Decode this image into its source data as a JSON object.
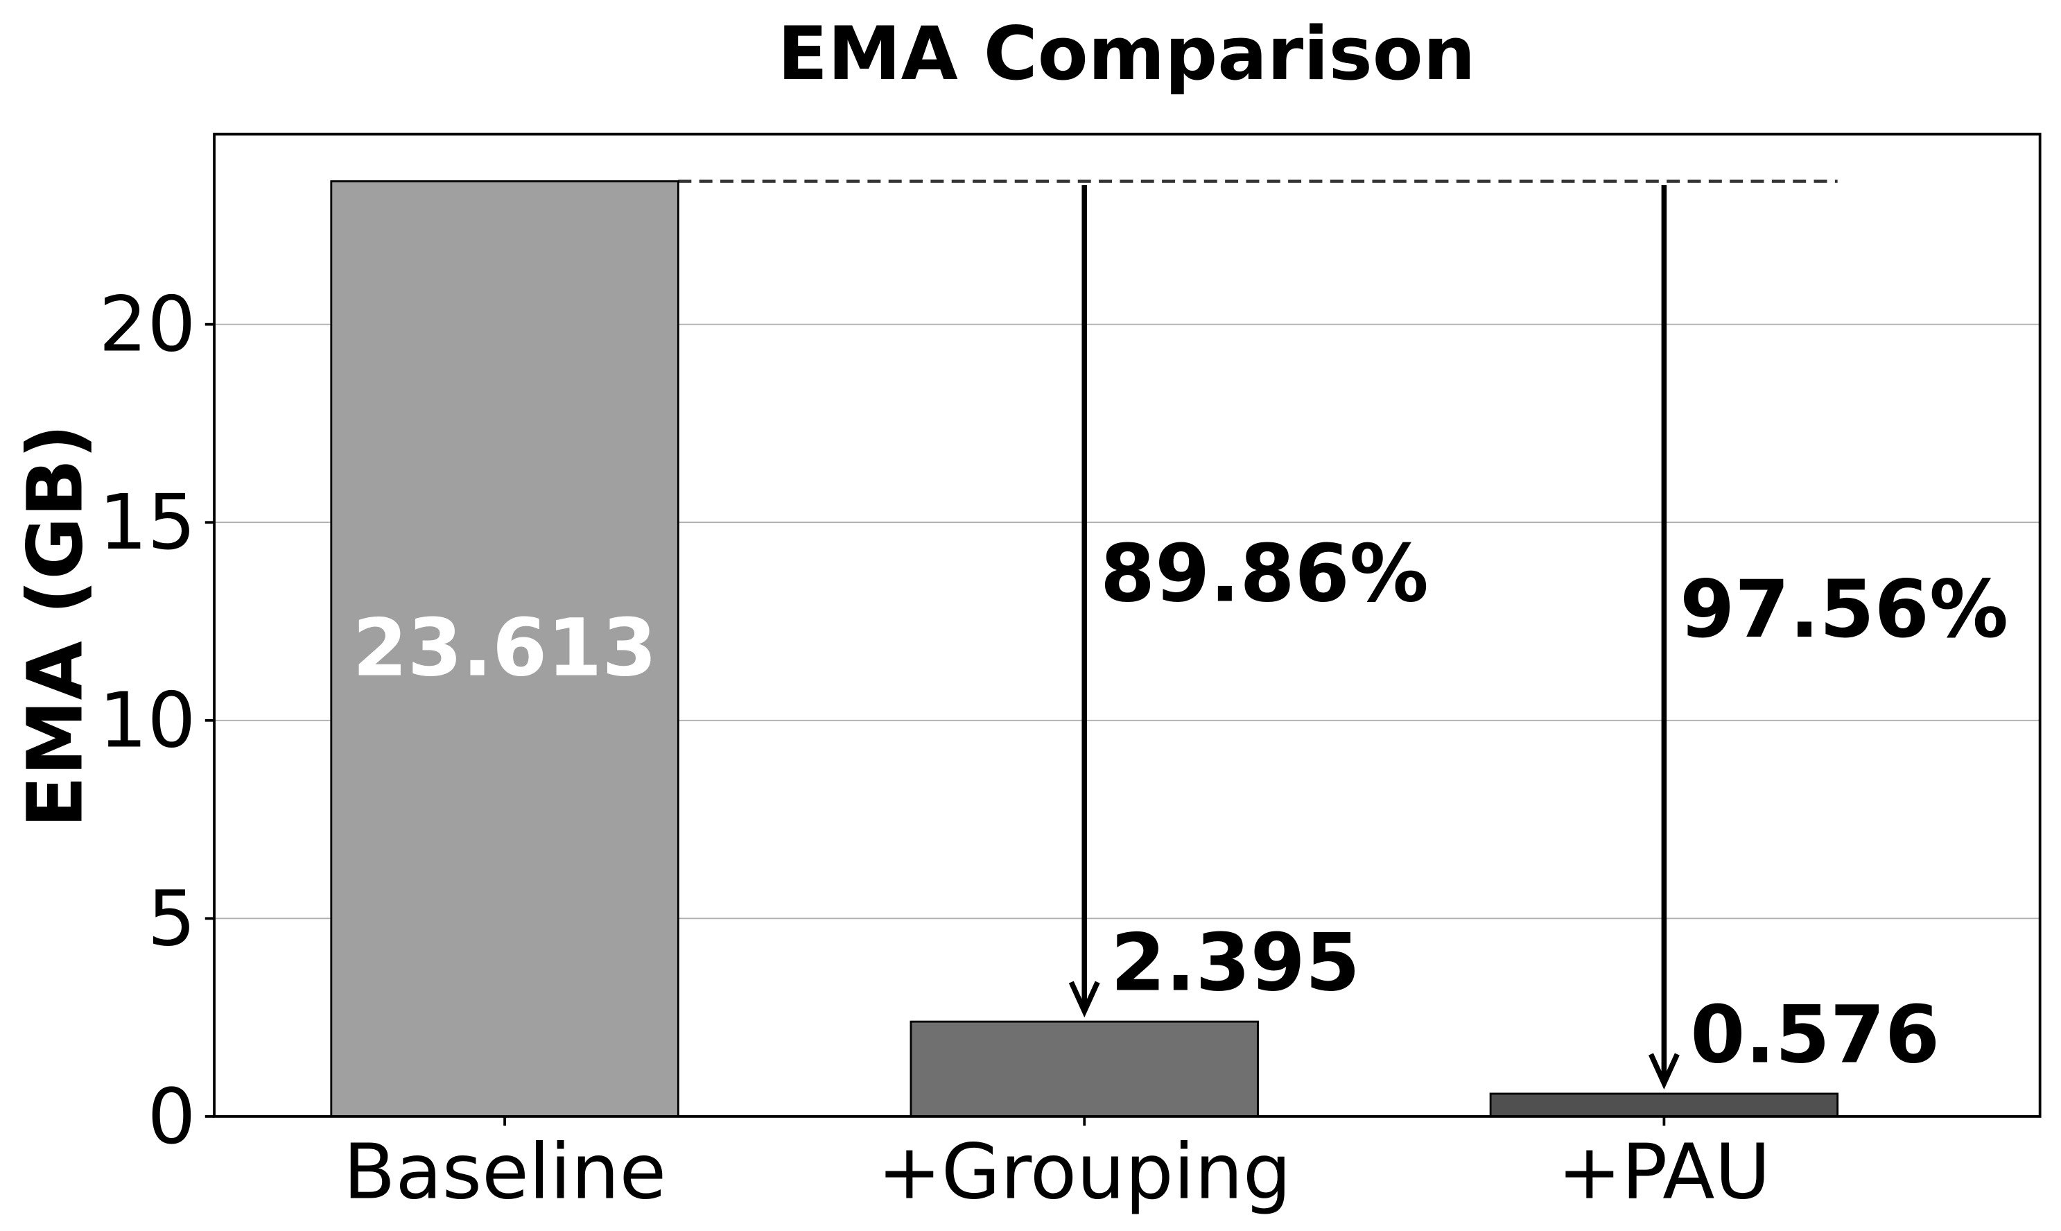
{
  "chart_data": {
    "type": "bar",
    "title": "EMA Comparison",
    "xlabel": "",
    "ylabel": "EMA (GB)",
    "categories": [
      "Baseline",
      "+Grouping",
      "+PAU"
    ],
    "values": [
      23.613,
      2.395,
      0.576
    ],
    "value_labels": [
      "23.613",
      "2.395",
      "0.576"
    ],
    "bar_colors": [
      "#a0a0a0",
      "#707070",
      "#505050"
    ],
    "ylim": [
      0,
      24.8
    ],
    "yticks": [
      0,
      5,
      10,
      15,
      20
    ],
    "grid": "y",
    "reference_line": {
      "value": 23.613,
      "style": "dashed"
    },
    "reductions": [
      {
        "category": "+Grouping",
        "label": "89.86%"
      },
      {
        "category": "+PAU",
        "label": "97.56%"
      }
    ]
  }
}
